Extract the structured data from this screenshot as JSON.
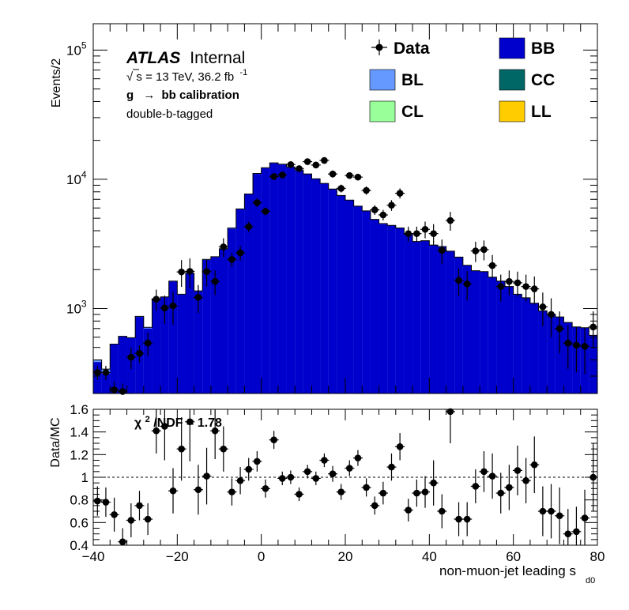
{
  "chart_data": [
    {
      "type": "bar",
      "subtype": "stacked-histogram-with-data-points",
      "ylabel": "Events/2",
      "yscale": "log",
      "ylim": [
        220,
        160000
      ],
      "xlim": [
        -40,
        80
      ],
      "bin_width": 2,
      "yticks": [
        {
          "value": 1000,
          "base": "10",
          "exp": "3"
        },
        {
          "value": 10000,
          "base": "10",
          "exp": "4"
        },
        {
          "value": 100000,
          "base": "10",
          "exp": "5"
        }
      ],
      "annotations": {
        "experiment": "ATLAS",
        "status": "Internal",
        "energy_prefix": "s = 13 TeV, 36.2 fb",
        "energy_sqrt": "√",
        "lumi_exp": "-1",
        "calibration_g": "g",
        "calibration_arrow": "→",
        "calibration_rest": "bb calibration",
        "selection": "double-b-tagged"
      },
      "legend_position": "top-right",
      "legend": [
        {
          "label": "Data",
          "kind": "marker",
          "color": "#000000"
        },
        {
          "label": "BB",
          "kind": "box",
          "color": "#0000cc"
        },
        {
          "label": "BL",
          "kind": "box",
          "color": "#6699ff"
        },
        {
          "label": "CC",
          "kind": "box",
          "color": "#006666"
        },
        {
          "label": "CL",
          "kind": "box",
          "color": "#99ff99"
        },
        {
          "label": "LL",
          "kind": "box",
          "color": "#ffcc00"
        }
      ],
      "mc_total": [
        385,
        315,
        530,
        610,
        590,
        860,
        700,
        1180,
        1230,
        1620,
        1280,
        1880,
        1360,
        2380,
        2500,
        2880,
        4150,
        5850,
        7650,
        11000,
        12200,
        13300,
        13000,
        12400,
        11700,
        11000,
        10100,
        9300,
        8400,
        7500,
        6900,
        6200,
        5700,
        4900,
        4500,
        4400,
        4200,
        3800,
        3300,
        3350,
        3100,
        3020,
        2780,
        2500,
        2160,
        1960,
        1930,
        1750,
        1630,
        1480,
        1290,
        1210,
        1100,
        960,
        900,
        860,
        780,
        720,
        710,
        620
      ],
      "bl_total": [
        400,
        340,
        530,
        610,
        595,
        870,
        715,
        1190,
        1230,
        1630,
        1290,
        1880,
        1370,
        2400,
        2520,
        2900,
        4200,
        5900,
        7700,
        11100,
        12300,
        13400,
        13100,
        12500,
        11800,
        11000,
        10100,
        9300,
        8400,
        7500,
        6900,
        6200,
        5700,
        4900,
        4550,
        4400,
        4200,
        3800,
        3300,
        3350,
        3100,
        3020,
        2780,
        2500,
        2160,
        1960,
        1930,
        1750,
        1630,
        1480,
        1290,
        1210,
        1100,
        960,
        900,
        860,
        780,
        720,
        710,
        620
      ],
      "data": [
        {
          "x": -39,
          "y": 320,
          "err": 40
        },
        {
          "x": -37,
          "y": 320,
          "err": 40
        },
        {
          "x": -35,
          "y": 235,
          "err": 35
        },
        {
          "x": -33,
          "y": 228,
          "err": 35
        },
        {
          "x": -31,
          "y": 420,
          "err": 80
        },
        {
          "x": -29,
          "y": 450,
          "err": 70
        },
        {
          "x": -27,
          "y": 540,
          "err": 110
        },
        {
          "x": -25,
          "y": 1180,
          "err": 220
        },
        {
          "x": -23,
          "y": 1010,
          "err": 250
        },
        {
          "x": -21,
          "y": 1050,
          "err": 300
        },
        {
          "x": -19,
          "y": 1920,
          "err": 450
        },
        {
          "x": -17,
          "y": 1940,
          "err": 500
        },
        {
          "x": -15,
          "y": 1220,
          "err": 300
        },
        {
          "x": -13,
          "y": 1930,
          "err": 450
        },
        {
          "x": -11,
          "y": 1620,
          "err": 350
        },
        {
          "x": -9,
          "y": 3000,
          "err": 500
        },
        {
          "x": -7,
          "y": 2400,
          "err": 300
        },
        {
          "x": -5,
          "y": 2700,
          "err": 350
        },
        {
          "x": -3,
          "y": 4300,
          "err": 400
        },
        {
          "x": -1,
          "y": 6600,
          "err": 500
        },
        {
          "x": 1,
          "y": 5650,
          "err": 400
        },
        {
          "x": 3,
          "y": 10500,
          "err": 600
        },
        {
          "x": 5,
          "y": 10800,
          "err": 600
        },
        {
          "x": 7,
          "y": 13000,
          "err": 700
        },
        {
          "x": 9,
          "y": 12100,
          "err": 700
        },
        {
          "x": 11,
          "y": 13700,
          "err": 700
        },
        {
          "x": 13,
          "y": 12900,
          "err": 700
        },
        {
          "x": 15,
          "y": 14000,
          "err": 700
        },
        {
          "x": 17,
          "y": 11000,
          "err": 700
        },
        {
          "x": 19,
          "y": 8500,
          "err": 600
        },
        {
          "x": 21,
          "y": 10700,
          "err": 600
        },
        {
          "x": 23,
          "y": 10400,
          "err": 600
        },
        {
          "x": 25,
          "y": 8200,
          "err": 600
        },
        {
          "x": 27,
          "y": 5800,
          "err": 500
        },
        {
          "x": 29,
          "y": 5300,
          "err": 500
        },
        {
          "x": 31,
          "y": 6300,
          "err": 600
        },
        {
          "x": 33,
          "y": 7800,
          "err": 700
        },
        {
          "x": 35,
          "y": 3800,
          "err": 500
        },
        {
          "x": 37,
          "y": 3800,
          "err": 500
        },
        {
          "x": 39,
          "y": 4100,
          "err": 600
        },
        {
          "x": 41,
          "y": 3800,
          "err": 700
        },
        {
          "x": 43,
          "y": 2820,
          "err": 600
        },
        {
          "x": 45,
          "y": 4800,
          "err": 800
        },
        {
          "x": 47,
          "y": 1650,
          "err": 400
        },
        {
          "x": 49,
          "y": 1550,
          "err": 400
        },
        {
          "x": 51,
          "y": 2790,
          "err": 500
        },
        {
          "x": 53,
          "y": 2860,
          "err": 500
        },
        {
          "x": 55,
          "y": 2150,
          "err": 450
        },
        {
          "x": 57,
          "y": 1480,
          "err": 350
        },
        {
          "x": 59,
          "y": 1620,
          "err": 350
        },
        {
          "x": 61,
          "y": 1580,
          "err": 350
        },
        {
          "x": 63,
          "y": 1480,
          "err": 350
        },
        {
          "x": 65,
          "y": 1420,
          "err": 350
        },
        {
          "x": 67,
          "y": 1030,
          "err": 300
        },
        {
          "x": 69,
          "y": 900,
          "err": 300
        },
        {
          "x": 71,
          "y": 700,
          "err": 250
        },
        {
          "x": 73,
          "y": 540,
          "err": 200
        },
        {
          "x": 75,
          "y": 520,
          "err": 200
        },
        {
          "x": 77,
          "y": 510,
          "err": 200
        },
        {
          "x": 79,
          "y": 720,
          "err": 230
        }
      ]
    },
    {
      "type": "scatter",
      "subtype": "ratio-with-error-bars",
      "ylabel": "Data/MC",
      "ylim": [
        0.4,
        1.6
      ],
      "xlim": [
        -40,
        80
      ],
      "xlabel": "non-muon-jet leading s",
      "xlabel_sub": "d0",
      "yticks": [
        "0.4",
        "0.6",
        "0.8",
        "1",
        "1.2",
        "1.4",
        "1.6"
      ],
      "xticks": [
        "−40",
        "−20",
        "0",
        "20",
        "40",
        "60",
        "80"
      ],
      "xtick_values": [
        -40,
        -20,
        0,
        20,
        40,
        60,
        80
      ],
      "reference_line": 1,
      "chi2_prefix": "χ",
      "chi2_sup": "2",
      "chi2_rest": "/NDF = 1.78",
      "points": [
        {
          "x": -39,
          "y": 0.79,
          "err": 0.13
        },
        {
          "x": -37,
          "y": 0.78,
          "err": 0.13
        },
        {
          "x": -35,
          "y": 0.67,
          "err": 0.15
        },
        {
          "x": -33,
          "y": 0.43,
          "err": 0.12
        },
        {
          "x": -31,
          "y": 0.62,
          "err": 0.15
        },
        {
          "x": -29,
          "y": 0.75,
          "err": 0.13
        },
        {
          "x": -27,
          "y": 0.63,
          "err": 0.14
        },
        {
          "x": -25,
          "y": 1.41,
          "err": 0.2
        },
        {
          "x": -23,
          "y": 1.45,
          "err": 0.3
        },
        {
          "x": -21,
          "y": 0.88,
          "err": 0.2
        },
        {
          "x": -19,
          "y": 1.25,
          "err": 0.28
        },
        {
          "x": -17,
          "y": 1.49,
          "err": 0.35
        },
        {
          "x": -15,
          "y": 0.89,
          "err": 0.22
        },
        {
          "x": -13,
          "y": 1.01,
          "err": 0.25
        },
        {
          "x": -11,
          "y": 1.41,
          "err": 0.25
        },
        {
          "x": -9,
          "y": 1.25,
          "err": 0.2
        },
        {
          "x": -7,
          "y": 0.87,
          "err": 0.12
        },
        {
          "x": -5,
          "y": 0.97,
          "err": 0.12
        },
        {
          "x": -3,
          "y": 1.07,
          "err": 0.1
        },
        {
          "x": -1,
          "y": 1.14,
          "err": 0.09
        },
        {
          "x": 1,
          "y": 0.9,
          "err": 0.08
        },
        {
          "x": 3,
          "y": 1.33,
          "err": 0.08
        },
        {
          "x": 5,
          "y": 0.99,
          "err": 0.06
        },
        {
          "x": 7,
          "y": 1.0,
          "err": 0.06
        },
        {
          "x": 9,
          "y": 0.85,
          "err": 0.06
        },
        {
          "x": 11,
          "y": 1.05,
          "err": 0.06
        },
        {
          "x": 13,
          "y": 0.99,
          "err": 0.06
        },
        {
          "x": 15,
          "y": 1.15,
          "err": 0.06
        },
        {
          "x": 17,
          "y": 1.03,
          "err": 0.07
        },
        {
          "x": 19,
          "y": 0.87,
          "err": 0.07
        },
        {
          "x": 21,
          "y": 1.08,
          "err": 0.07
        },
        {
          "x": 23,
          "y": 1.17,
          "err": 0.07
        },
        {
          "x": 25,
          "y": 0.91,
          "err": 0.08
        },
        {
          "x": 27,
          "y": 0.75,
          "err": 0.08
        },
        {
          "x": 29,
          "y": 0.86,
          "err": 0.1
        },
        {
          "x": 31,
          "y": 1.09,
          "err": 0.12
        },
        {
          "x": 33,
          "y": 1.27,
          "err": 0.12
        },
        {
          "x": 35,
          "y": 0.71,
          "err": 0.1
        },
        {
          "x": 37,
          "y": 0.86,
          "err": 0.12
        },
        {
          "x": 39,
          "y": 0.87,
          "err": 0.14
        },
        {
          "x": 41,
          "y": 0.95,
          "err": 0.2
        },
        {
          "x": 43,
          "y": 0.7,
          "err": 0.15
        },
        {
          "x": 45,
          "y": 1.58,
          "err": 0.28
        },
        {
          "x": 47,
          "y": 0.63,
          "err": 0.15
        },
        {
          "x": 49,
          "y": 0.63,
          "err": 0.15
        },
        {
          "x": 51,
          "y": 0.92,
          "err": 0.15
        },
        {
          "x": 53,
          "y": 1.05,
          "err": 0.18
        },
        {
          "x": 55,
          "y": 1.01,
          "err": 0.2
        },
        {
          "x": 57,
          "y": 0.86,
          "err": 0.18
        },
        {
          "x": 59,
          "y": 0.91,
          "err": 0.2
        },
        {
          "x": 61,
          "y": 1.06,
          "err": 0.22
        },
        {
          "x": 63,
          "y": 0.97,
          "err": 0.2
        },
        {
          "x": 65,
          "y": 1.11,
          "err": 0.25
        },
        {
          "x": 67,
          "y": 0.7,
          "err": 0.22
        },
        {
          "x": 69,
          "y": 0.7,
          "err": 0.24
        },
        {
          "x": 71,
          "y": 0.66,
          "err": 0.25
        },
        {
          "x": 73,
          "y": 0.5,
          "err": 0.22
        },
        {
          "x": 75,
          "y": 0.52,
          "err": 0.22
        },
        {
          "x": 77,
          "y": 0.64,
          "err": 0.25
        },
        {
          "x": 79,
          "y": 1.0,
          "err": 0.3
        }
      ]
    }
  ]
}
